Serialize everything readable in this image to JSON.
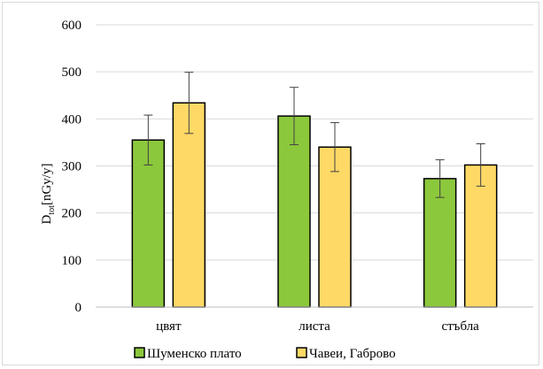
{
  "chart_data": {
    "type": "bar",
    "categories": [
      "цвят",
      "листа",
      "стъбла"
    ],
    "series": [
      {
        "name": "Шуменско плато",
        "color": "#8cc83c",
        "values": [
          355,
          406,
          273
        ],
        "errors": [
          53,
          61,
          40
        ]
      },
      {
        "name": "Чавеи, Габрово",
        "color": "#ffd966",
        "values": [
          434,
          340,
          302
        ],
        "errors": [
          65,
          52,
          45
        ]
      }
    ],
    "ylabel": {
      "main": "D",
      "sub": "tot",
      "rest": "[nGy/y]"
    },
    "ylim": [
      0,
      600
    ],
    "yticks": [
      0,
      100,
      200,
      300,
      400,
      500,
      600
    ],
    "grid": true,
    "legend_position": "bottom"
  }
}
